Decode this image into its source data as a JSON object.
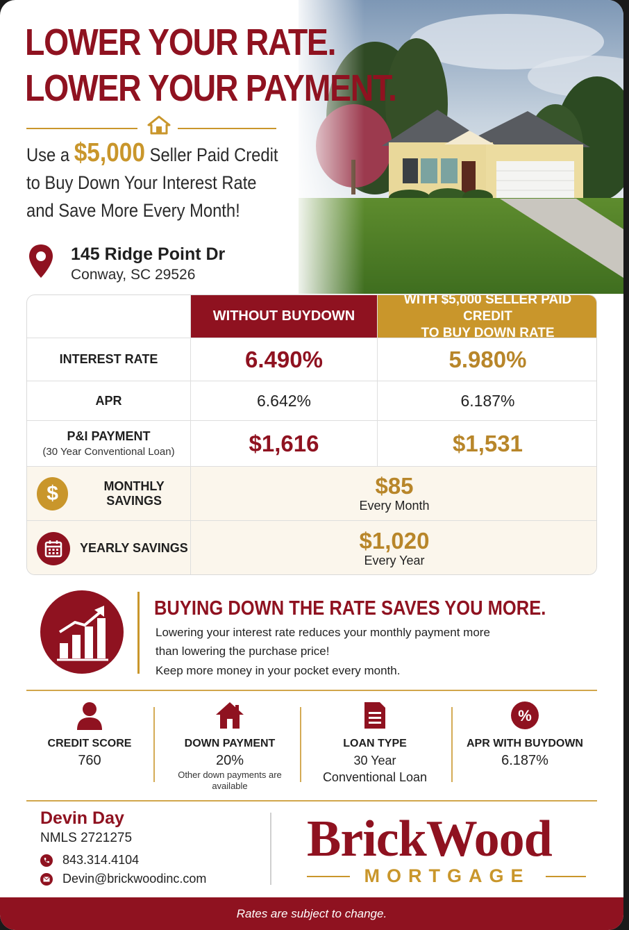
{
  "hero": {
    "headline_1": "LOWER YOUR RATE.",
    "headline_2": "LOWER YOUR PAYMENT.",
    "sub_prefix": "Use a",
    "sub_credit": "$5,000",
    "sub_suffix": "Seller Paid Credit",
    "sub_line_2": "to Buy Down Your Interest Rate",
    "sub_line_3": "and Save More Every Month!"
  },
  "address": {
    "street": "145 Ridge Point Dr",
    "city": "Conway, SC 29526"
  },
  "comparison": {
    "col_without": "WITHOUT BUYDOWN",
    "col_with_1": "WITH $5,000 SELLER PAID CREDIT",
    "col_with_2": "TO BUY DOWN RATE",
    "rows": [
      {
        "label": "INTEREST RATE",
        "sub": "",
        "without": "6.490%",
        "with": "5.980%"
      },
      {
        "label": "APR",
        "sub": "",
        "without": "6.642%",
        "with": "6.187%"
      },
      {
        "label": "P&I PAYMENT",
        "sub": "(30 Year Conventional Loan)",
        "without": "$1,616",
        "with": "$1,531"
      }
    ],
    "monthly": {
      "label": "MONTHLY SAVINGS",
      "icon": "dollar-icon",
      "amount": "$85",
      "period": "Every Month"
    },
    "yearly": {
      "label": "YEARLY SAVINGS",
      "icon": "calendar-icon",
      "amount": "$1,020",
      "period": "Every Year"
    }
  },
  "tagline": {
    "icon": "growth-chart-icon",
    "title": "BUYING DOWN THE RATE SAVES YOU MORE.",
    "line_1": "Lowering your interest rate reduces your monthly payment more",
    "line_2": "than lowering the purchase price!",
    "line_3": "Keep more money in your pocket every month."
  },
  "details": [
    {
      "icon": "person-icon",
      "label": "CREDIT SCORE",
      "value": "760",
      "note": ""
    },
    {
      "icon": "house-icon",
      "label": "DOWN PAYMENT",
      "value": "20%",
      "note": "Other down payments are available"
    },
    {
      "icon": "document-icon",
      "label": "LOAN TYPE",
      "value": "30 Year",
      "note": "Conventional Loan"
    },
    {
      "icon": "percent-icon",
      "label": "APR WITH BUYDOWN",
      "value": "6.187%",
      "note": ""
    }
  ],
  "officer": {
    "name": "Devin Day",
    "nmls": "NMLS 2721275",
    "phone": "843.314.4104",
    "email": "Devin@brickwoodinc.com"
  },
  "brand": {
    "name": "BrickWood",
    "sub": "MORTGAGE"
  },
  "disclaimer": "Rates are subject to change.",
  "colors": {
    "red": "#8f1220",
    "gold": "#c9962b"
  }
}
